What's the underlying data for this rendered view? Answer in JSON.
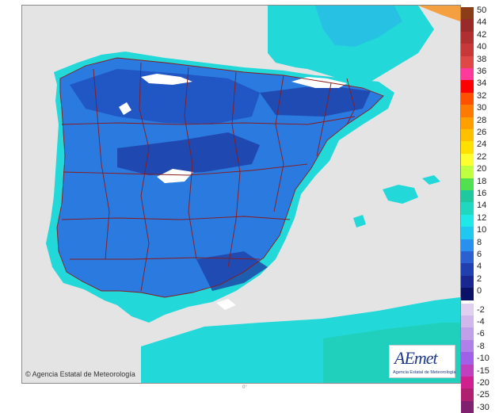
{
  "map": {
    "copyright": "© Agencia Estatal de Meteorología",
    "logo_text": "AEmet",
    "logo_subtitle": "Agencia Estatal de Meteorología",
    "scale_mark": "0°",
    "colors": {
      "sea": "#e4e4e4",
      "border_lines": "#8b1a1a",
      "peaks": "#ffffff",
      "cyan_band": "#22e0e0",
      "blue_band": "#2a7ae0"
    }
  },
  "legend": {
    "positive": [
      {
        "label": "50",
        "color": "#8b3d17"
      },
      {
        "label": "44",
        "color": "#9a2a2a"
      },
      {
        "label": "42",
        "color": "#b03030"
      },
      {
        "label": "40",
        "color": "#c83838"
      },
      {
        "label": "38",
        "color": "#e04848"
      },
      {
        "label": "36",
        "color": "#ff3a9a"
      },
      {
        "label": "34",
        "color": "#ff0000"
      },
      {
        "label": "32",
        "color": "#ff5000"
      },
      {
        "label": "30",
        "color": "#ff7a00"
      },
      {
        "label": "28",
        "color": "#ffa000"
      },
      {
        "label": "26",
        "color": "#ffc000"
      },
      {
        "label": "24",
        "color": "#ffe000"
      },
      {
        "label": "22",
        "color": "#ffff30"
      },
      {
        "label": "20",
        "color": "#c0ff40"
      },
      {
        "label": "18",
        "color": "#50e050"
      },
      {
        "label": "16",
        "color": "#20c8a0"
      },
      {
        "label": "14",
        "color": "#20d8c0"
      },
      {
        "label": "12",
        "color": "#20e8e8"
      },
      {
        "label": "10",
        "color": "#20c8f0"
      },
      {
        "label": "8",
        "color": "#2a90f0"
      },
      {
        "label": "6",
        "color": "#2a60d0"
      },
      {
        "label": "4",
        "color": "#2040b0"
      },
      {
        "label": "2",
        "color": "#182890"
      },
      {
        "label": "0",
        "color": "#0a1268"
      }
    ],
    "negative": [
      {
        "label": "-2",
        "color": "#e0d0f0"
      },
      {
        "label": "-4",
        "color": "#d0b8ec"
      },
      {
        "label": "-6",
        "color": "#c0a0e8"
      },
      {
        "label": "-8",
        "color": "#b080e8"
      },
      {
        "label": "-10",
        "color": "#a060e8"
      },
      {
        "label": "-15",
        "color": "#c040c0"
      },
      {
        "label": "-20",
        "color": "#d02090"
      },
      {
        "label": "-25",
        "color": "#b02070"
      },
      {
        "label": "-30",
        "color": "#802070"
      }
    ]
  }
}
